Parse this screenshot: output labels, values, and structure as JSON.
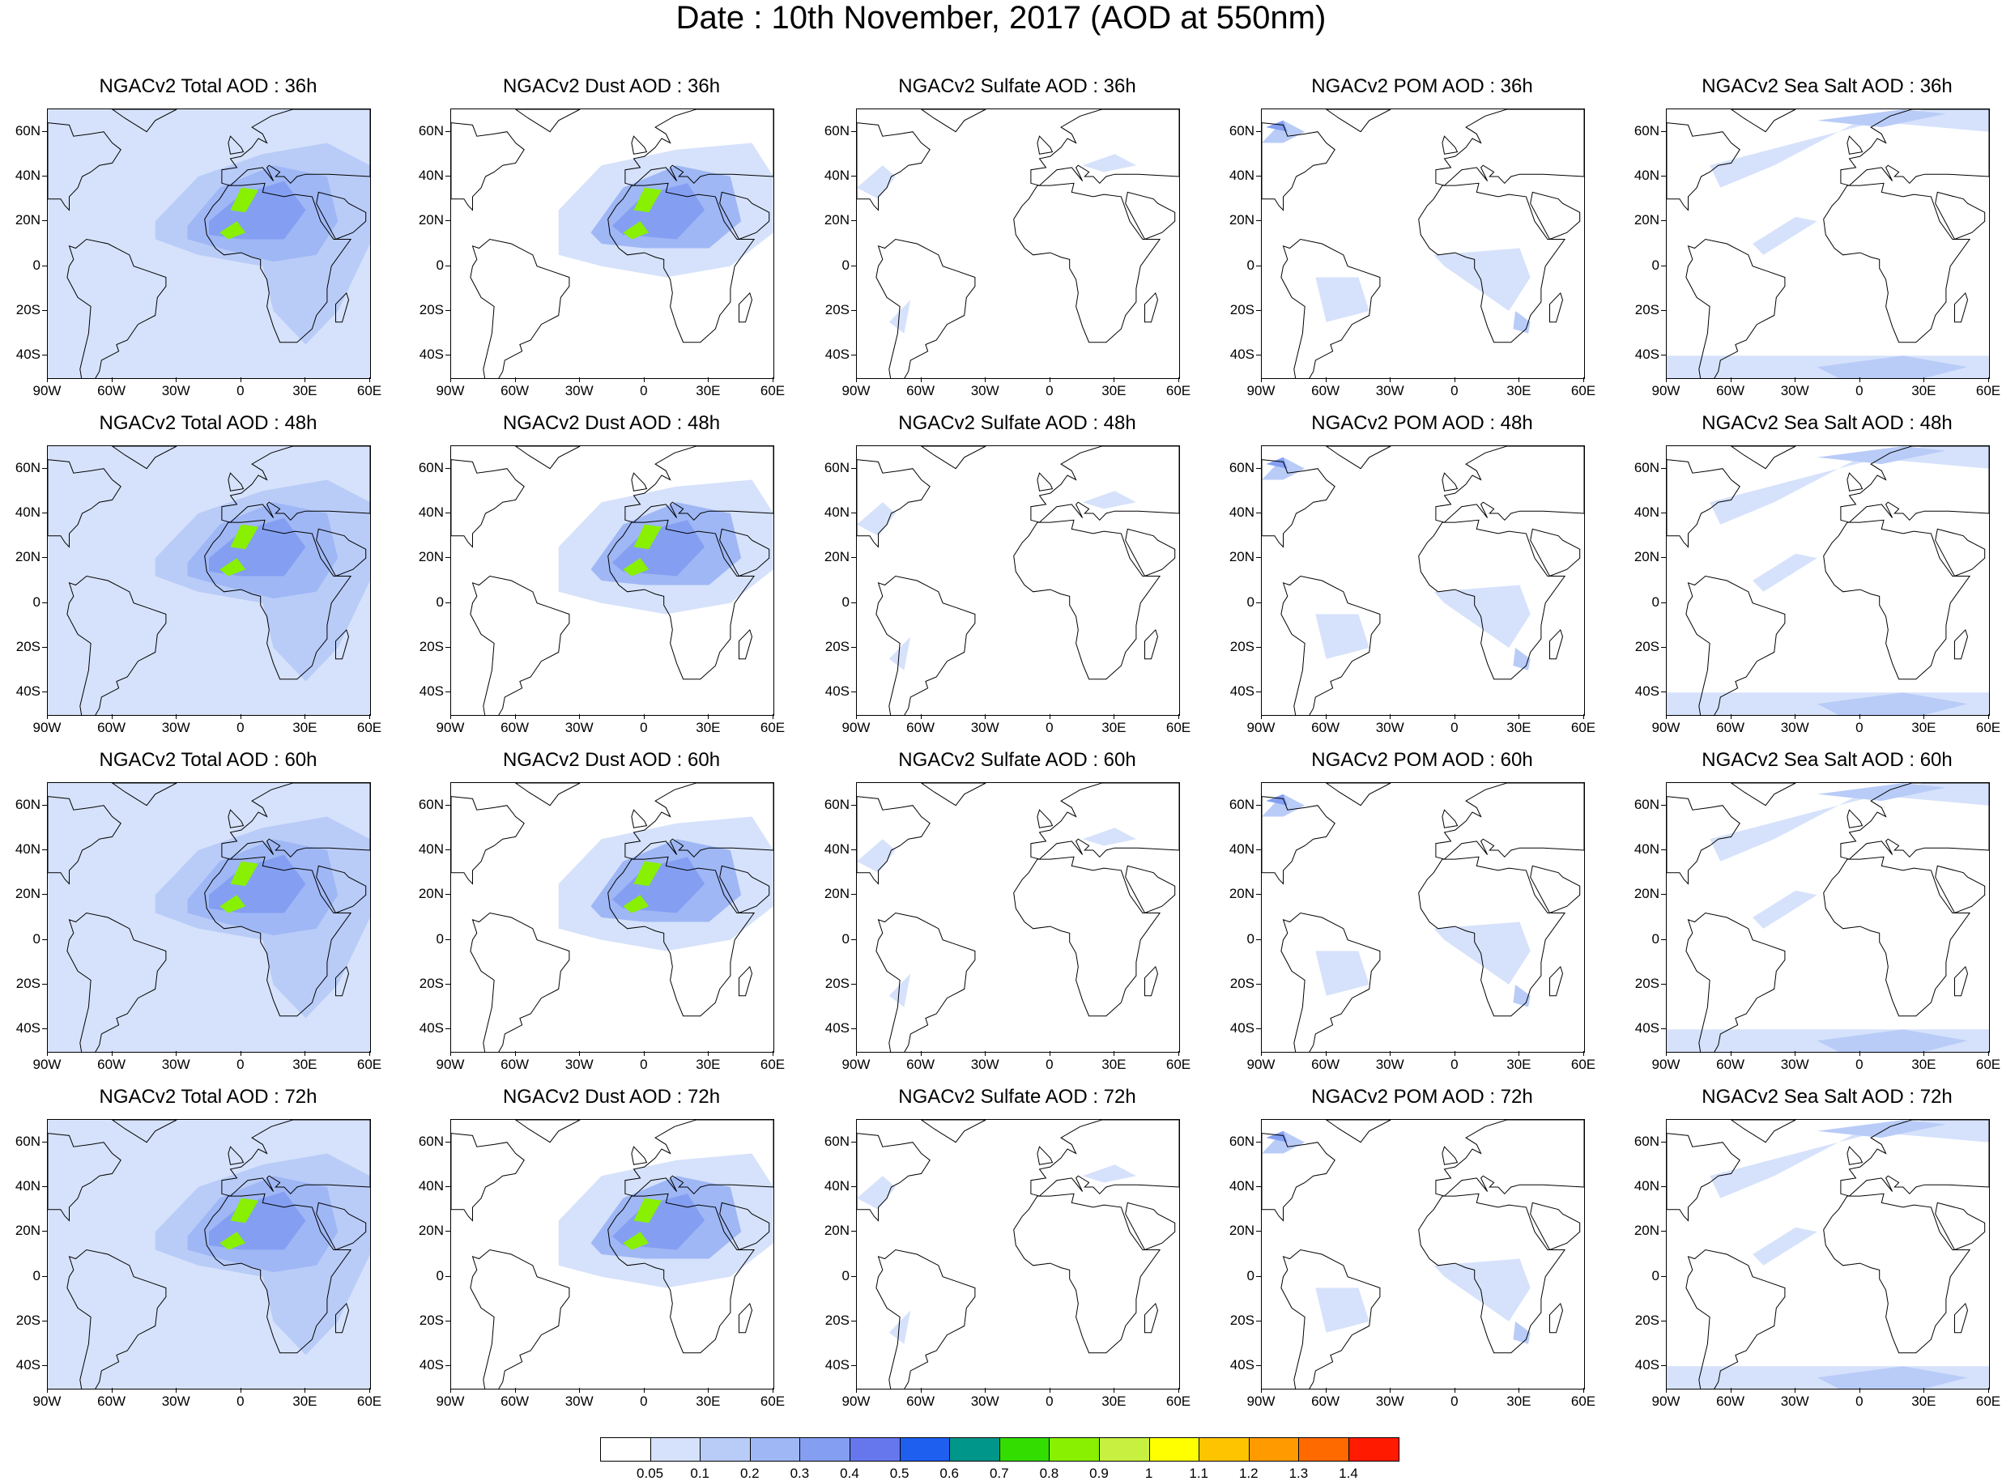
{
  "title": "Date : 10th November, 2017 (AOD at 550nm)",
  "lat_ticks": [
    "60N",
    "40N",
    "20N",
    "0",
    "20S",
    "40S"
  ],
  "lat_values": [
    60,
    40,
    20,
    0,
    -20,
    -40
  ],
  "lon_ticks": [
    "90W",
    "60W",
    "30W",
    "0",
    "30E",
    "60E"
  ],
  "lon_values": [
    -90,
    -60,
    -30,
    0,
    30,
    60
  ],
  "map_extent": {
    "lon": [
      -90,
      60
    ],
    "lat": [
      -50,
      70
    ]
  },
  "panels": [
    {
      "title": "NGACv2 Total AOD : 36h",
      "species": "total",
      "hour": 36
    },
    {
      "title": "NGACv2 Dust AOD : 36h",
      "species": "dust",
      "hour": 36
    },
    {
      "title": "NGACv2 Sulfate AOD : 36h",
      "species": "sulfate",
      "hour": 36
    },
    {
      "title": "NGACv2 POM AOD : 36h",
      "species": "pom",
      "hour": 36
    },
    {
      "title": "NGACv2 Sea Salt AOD : 36h",
      "species": "seasalt",
      "hour": 36
    },
    {
      "title": "NGACv2 Total AOD : 48h",
      "species": "total",
      "hour": 48
    },
    {
      "title": "NGACv2 Dust AOD : 48h",
      "species": "dust",
      "hour": 48
    },
    {
      "title": "NGACv2 Sulfate AOD : 48h",
      "species": "sulfate",
      "hour": 48
    },
    {
      "title": "NGACv2 POM AOD : 48h",
      "species": "pom",
      "hour": 48
    },
    {
      "title": "NGACv2 Sea Salt AOD : 48h",
      "species": "seasalt",
      "hour": 48
    },
    {
      "title": "NGACv2 Total AOD : 60h",
      "species": "total",
      "hour": 60
    },
    {
      "title": "NGACv2 Dust AOD : 60h",
      "species": "dust",
      "hour": 60
    },
    {
      "title": "NGACv2 Sulfate AOD : 60h",
      "species": "sulfate",
      "hour": 60
    },
    {
      "title": "NGACv2 POM AOD : 60h",
      "species": "pom",
      "hour": 60
    },
    {
      "title": "NGACv2 Sea Salt AOD : 60h",
      "species": "seasalt",
      "hour": 60
    },
    {
      "title": "NGACv2 Total AOD : 72h",
      "species": "total",
      "hour": 72
    },
    {
      "title": "NGACv2 Dust AOD : 72h",
      "species": "dust",
      "hour": 72
    },
    {
      "title": "NGACv2 Sulfate AOD : 72h",
      "species": "sulfate",
      "hour": 72
    },
    {
      "title": "NGACv2 POM AOD : 72h",
      "species": "pom",
      "hour": 72
    },
    {
      "title": "NGACv2 Sea Salt  AOD : 72h",
      "species": "seasalt",
      "hour": 72
    }
  ],
  "colorbar": {
    "labels": [
      "0.05",
      "0.1",
      "0.2",
      "0.3",
      "0.4",
      "0.5",
      "0.6",
      "0.7",
      "0.8",
      "0.9",
      "1",
      "1.1",
      "1.2",
      "1.3",
      "1.4"
    ],
    "colors": [
      "#ffffff",
      "#d6e2fb",
      "#b9ccf8",
      "#9fb7f5",
      "#849ff2",
      "#6677ee",
      "#1e5ff0",
      "#00968a",
      "#33dd00",
      "#88f000",
      "#c8f040",
      "#ffff00",
      "#ffc400",
      "#ff9a00",
      "#ff6a00",
      "#ff1a00"
    ]
  },
  "colors": {
    "land_outline": "#000000",
    "low_aod": "#d6e2fb",
    "mid_aod": "#9fb7f5",
    "high_aod": "#6677ee",
    "peak_aod": "#88f000"
  }
}
